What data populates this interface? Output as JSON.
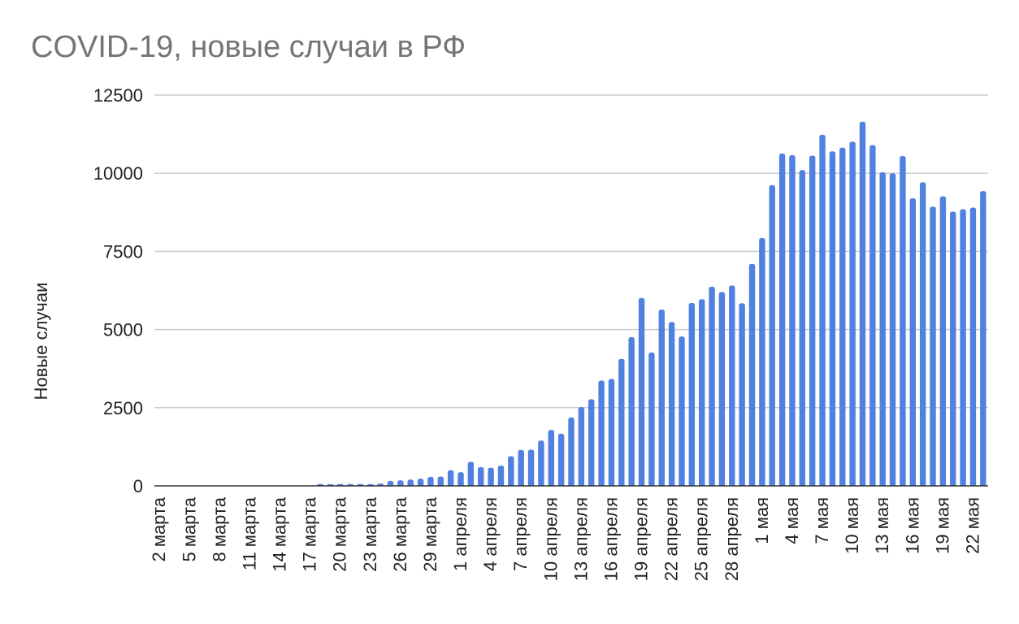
{
  "chart_data": {
    "type": "bar",
    "title": "COVID-19, новые случаи в РФ",
    "xlabel": "",
    "ylabel": "Новые случаи",
    "ylim": [
      0,
      12500
    ],
    "yticks": [
      0,
      2500,
      5000,
      7500,
      10000,
      12500
    ],
    "grid": true,
    "legend": "none",
    "bar_color": "#5080e0",
    "categories": [
      "2 марта",
      "3 марта",
      "4 марта",
      "5 марта",
      "6 марта",
      "7 марта",
      "8 марта",
      "9 марта",
      "10 марта",
      "11 марта",
      "12 марта",
      "13 марта",
      "14 марта",
      "15 марта",
      "16 марта",
      "17 марта",
      "18 марта",
      "19 марта",
      "20 марта",
      "21 марта",
      "22 марта",
      "23 марта",
      "24 марта",
      "25 марта",
      "26 марта",
      "27 марта",
      "28 марта",
      "29 марта",
      "30 марта",
      "31 марта",
      "1 апреля",
      "2 апреля",
      "3 апреля",
      "4 апреля",
      "5 апреля",
      "6 апреля",
      "7 апреля",
      "8 апреля",
      "9 апреля",
      "10 апреля",
      "11 апреля",
      "12 апреля",
      "13 апреля",
      "14 апреля",
      "15 апреля",
      "16 апреля",
      "17 апреля",
      "18 апреля",
      "19 апреля",
      "20 апреля",
      "21 апреля",
      "22 апреля",
      "23 апреля",
      "24 апреля",
      "25 апреля",
      "26 апреля",
      "27 апреля",
      "28 апреля",
      "29 апреля",
      "30 апреля",
      "1 мая",
      "2 мая",
      "3 мая",
      "4 мая",
      "5 мая",
      "6 мая",
      "7 мая",
      "8 мая",
      "9 мая",
      "10 мая",
      "11 мая",
      "12 мая",
      "13 мая",
      "14 мая",
      "15 мая",
      "16 мая",
      "17 мая",
      "18 мая",
      "19 мая",
      "20 мая",
      "21 мая",
      "22 мая",
      "23 мая"
    ],
    "tick_labels": [
      "2 марта",
      "5 марта",
      "8 марта",
      "11 марта",
      "14 марта",
      "17 марта",
      "20 марта",
      "23 марта",
      "26 марта",
      "29 марта",
      "1 апреля",
      "4 апреля",
      "7 апреля",
      "10 апреля",
      "13 апреля",
      "16 апреля",
      "19 апреля",
      "22 апреля",
      "25 апреля",
      "28 апреля",
      "1 мая",
      "4 мая",
      "7 мая",
      "10 мая",
      "13 мая",
      "16 мая",
      "19 мая",
      "22 мая"
    ],
    "series": [
      {
        "values": [
          0,
          0,
          0,
          0,
          0,
          0,
          0,
          0,
          0,
          0,
          0,
          0,
          0,
          0,
          0,
          0,
          60,
          55,
          60,
          60,
          60,
          55,
          70,
          160,
          180,
          200,
          230,
          290,
          300,
          500,
          440,
          770,
          600,
          580,
          650,
          950,
          1150,
          1160,
          1450,
          1790,
          1670,
          2190,
          2520,
          2770,
          3370,
          3420,
          4060,
          4760,
          6010,
          4270,
          5640,
          5240,
          4780,
          5850,
          5970,
          6370,
          6200,
          6410,
          5840,
          7100,
          7930,
          9620,
          10630,
          10580,
          10100,
          10560,
          11230,
          10700,
          10820,
          11010,
          11650,
          10900,
          10030,
          10000,
          10550,
          9200,
          9710,
          8930,
          9260,
          8770,
          8850,
          8900,
          9430
        ]
      }
    ]
  }
}
